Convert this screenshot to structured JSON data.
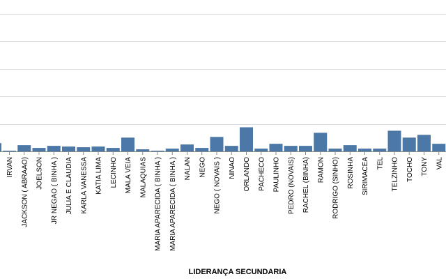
{
  "chart_data": {
    "type": "bar",
    "xlabel": "LIDERANÇA SECUNDARIA",
    "ylabel": "",
    "ylim": [
      0,
      22
    ],
    "gridlines": [
      4,
      8,
      12,
      16,
      20
    ],
    "grid": true,
    "bar_color": "#4c78a8",
    "partial_left_value": 1.2,
    "partial_right_value": 0.5,
    "categories": [
      "IRVAN",
      "JACKSON ( ABRAAO)",
      "JOELSON",
      "JR NEGAO ( BINHA )",
      "JULIA E CLAUDIA",
      "KARLA VANESSA",
      "KATIA LIMA",
      "LECINHO",
      "MALA VEIA",
      "MALAQUIAS",
      "MARIA APARECIDA  ( BINHA )",
      "MARIA APARECIDA ( BINHA )",
      "NALAN",
      "NEGO",
      "NEGO ( NOVAIS )",
      "NINAO",
      "ORLANDO",
      "PACHECO",
      "PAULINHO",
      "PEDRO (NOVAIS)",
      "RACHEL (BINHA)",
      "RAMON",
      "RODRIGO (SINHO)",
      "ROSINHA",
      "SIRIMACEA",
      "TEL",
      "TELZINHO",
      "TOCHO",
      "TONY",
      "VAL"
    ],
    "values": [
      0.1,
      0.9,
      0.5,
      0.8,
      0.7,
      0.6,
      0.7,
      0.5,
      2.0,
      0.3,
      0.1,
      0.4,
      1.0,
      0.5,
      2.1,
      0.8,
      3.5,
      0.4,
      1.1,
      0.8,
      0.8,
      2.7,
      0.4,
      0.9,
      0.4,
      0.4,
      3.0,
      2.0,
      2.4,
      1.1
    ]
  }
}
